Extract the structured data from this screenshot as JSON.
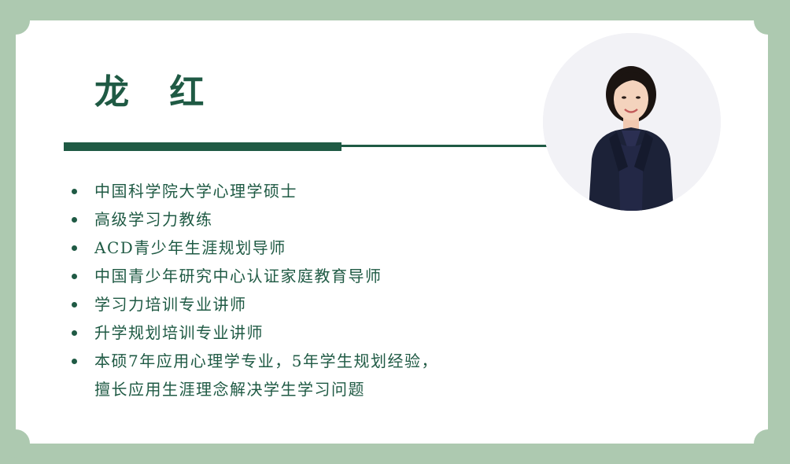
{
  "profile": {
    "name": "龙  红",
    "photo_alt": "avatar"
  },
  "credentials": [
    {
      "lines": [
        "中国科学院大学心理学硕士"
      ]
    },
    {
      "lines": [
        "高级学习力教练"
      ]
    },
    {
      "lines": [
        "ACD青少年生涯规划导师"
      ]
    },
    {
      "lines": [
        "中国青少年研究中心认证家庭教育导师"
      ]
    },
    {
      "lines": [
        "学习力培训专业讲师"
      ]
    },
    {
      "lines": [
        "升学规划培训专业讲师"
      ]
    },
    {
      "lines": [
        "本硕7年应用心理学专业，5年学生规划经验，",
        "擅长应用生涯理念解决学生学习问题"
      ]
    }
  ],
  "colors": {
    "accent": "#1f5a44",
    "frame": "#adc9b0",
    "card": "#ffffff"
  }
}
